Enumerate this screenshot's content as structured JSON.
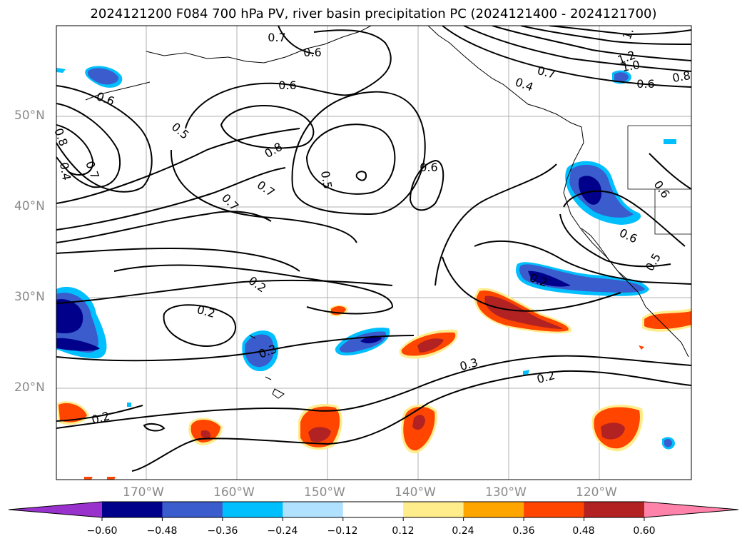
{
  "title": "2024121200 F084 700 hPa PV, river basin precipitation PC (2024121400 - 2024121700)",
  "lat_labels": [
    "50°N",
    "40°N",
    "30°N",
    "20°N"
  ],
  "lon_labels": [
    "170°W",
    "160°W",
    "150°W",
    "140°W",
    "130°W",
    "120°W"
  ],
  "colorbar": {
    "ticks": [
      "−0.60",
      "−0.48",
      "−0.36",
      "−0.24",
      "−0.12",
      "0.12",
      "0.24",
      "0.36",
      "0.48",
      "0.60"
    ],
    "colors": [
      "#9932cc",
      "#00008b",
      "#3a5ccc",
      "#00bfff",
      "#b0e2ff",
      "#ffffff",
      "#ffec8b",
      "#ffa500",
      "#ff4500",
      "#b22222",
      "#ff82ab"
    ]
  },
  "contour_labels": [
    "0.7",
    "0.6",
    "0.6",
    "0.6",
    "0.5",
    "0.8",
    "0.5",
    "0.8",
    "0.7",
    "0.4",
    "0.7",
    "0.7",
    "0.6",
    "0.2",
    "0.2",
    "0.3",
    "0.3",
    "0.2",
    "0.2",
    "0.6",
    "0.6",
    "0.5",
    "0.2",
    "0.4",
    "1.2",
    "1.0",
    "0.7",
    "0.8",
    "0.6",
    "1."
  ]
}
